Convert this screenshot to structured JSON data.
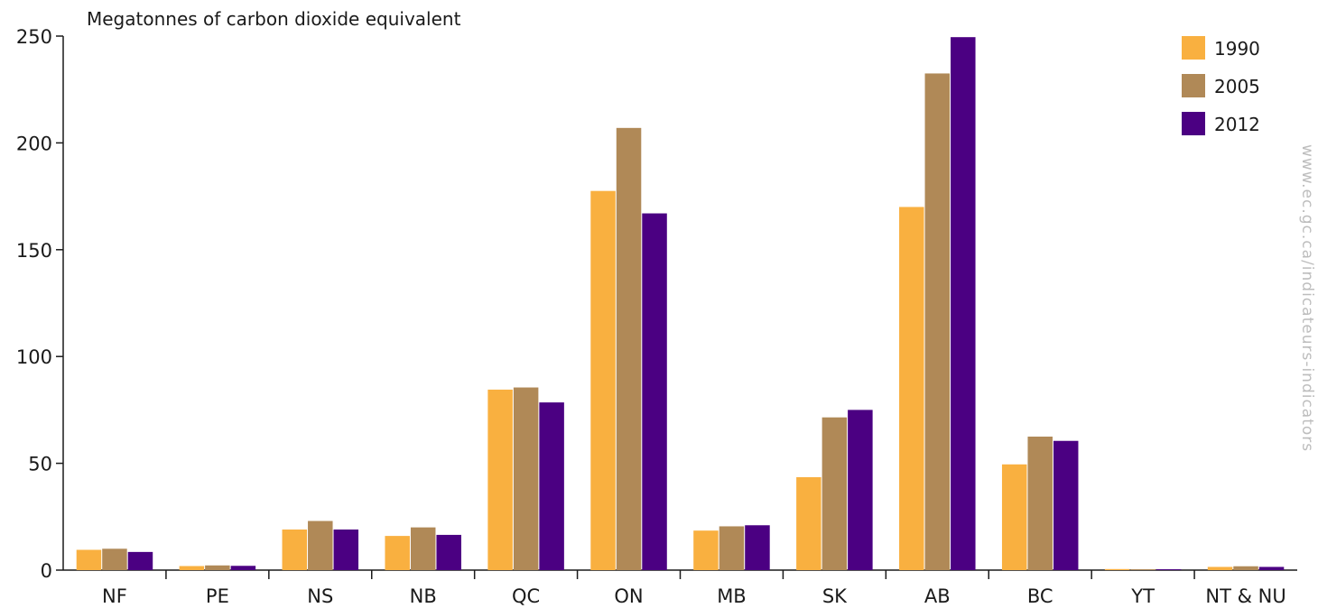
{
  "chart_data": {
    "type": "bar",
    "ylabel": "Megatonnes of carbon dioxide equivalent",
    "ylim": [
      0,
      250
    ],
    "yticks": [
      0,
      50,
      100,
      150,
      200,
      250
    ],
    "categories": [
      "NF",
      "PE",
      "NS",
      "NB",
      "QC",
      "ON",
      "MB",
      "SK",
      "AB",
      "BC",
      "YT",
      "NT & NU"
    ],
    "series": [
      {
        "name": "1990",
        "color": "#F9B040",
        "values": [
          9.5,
          1.9,
          19.0,
          16.0,
          84.5,
          177.5,
          18.5,
          43.5,
          170.0,
          49.5,
          0.5,
          1.5
        ]
      },
      {
        "name": "2005",
        "color": "#B08957",
        "values": [
          10.0,
          2.2,
          23.0,
          20.0,
          85.5,
          207.0,
          20.5,
          71.5,
          232.5,
          62.5,
          0.4,
          1.8
        ]
      },
      {
        "name": "2012",
        "color": "#4B0082",
        "values": [
          8.5,
          2.0,
          19.0,
          16.5,
          78.5,
          167.0,
          21.0,
          75.0,
          249.5,
          60.5,
          0.4,
          1.5
        ]
      }
    ],
    "legend_position": "top-right",
    "grid": false,
    "watermark": "www.ec.gc.ca/indicateurs-indicators"
  }
}
